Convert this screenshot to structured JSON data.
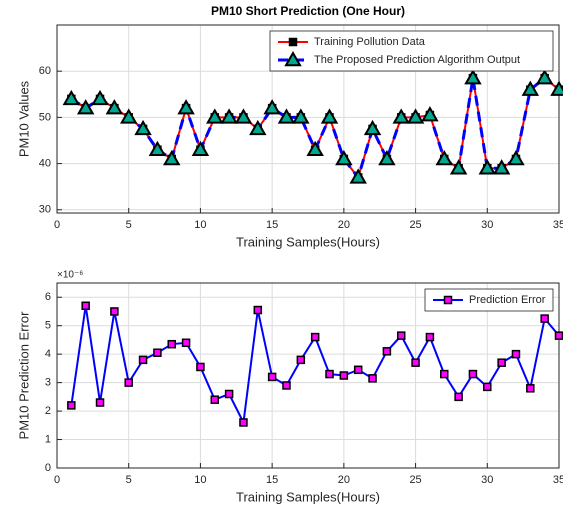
{
  "chart_data": [
    {
      "type": "line",
      "title": "PM10 Short Prediction (One Hour)",
      "xlabel": "Training Samples(Hours)",
      "ylabel": "PM10 Values",
      "x": [
        1,
        2,
        3,
        4,
        5,
        6,
        7,
        8,
        9,
        10,
        11,
        12,
        13,
        14,
        15,
        16,
        17,
        18,
        19,
        20,
        21,
        22,
        23,
        24,
        25,
        26,
        27,
        28,
        29,
        30,
        31,
        32,
        33,
        34,
        35
      ],
      "xlim": [
        0,
        35
      ],
      "xticks": [
        0,
        5,
        10,
        15,
        20,
        25,
        30,
        35
      ],
      "ylim": [
        29.3,
        70
      ],
      "yticks": [
        30,
        40,
        50,
        60
      ],
      "grid": true,
      "legend": "upper right",
      "series": [
        {
          "name": "Training Pollution Data",
          "color": "#ff0000",
          "linestyle": "solid",
          "marker": "square",
          "marker_color": "#000000",
          "values": [
            54,
            52,
            54,
            52,
            50,
            47.5,
            43,
            41,
            52,
            43,
            50,
            50,
            50,
            47.5,
            52,
            50,
            50,
            43,
            50,
            41,
            37,
            47.5,
            41,
            50,
            50,
            50.5,
            41,
            39,
            58.5,
            39,
            39,
            41,
            56,
            58.5,
            56
          ]
        },
        {
          "name": "The Proposed Prediction Algorithm Output",
          "color": "#0000ff",
          "linestyle": "dashed",
          "marker": "triangle",
          "marker_color": "#00a890",
          "values": [
            54,
            52,
            54,
            52,
            50,
            47.5,
            43,
            41,
            52,
            43,
            50,
            50,
            50,
            47.5,
            52,
            50,
            50,
            43,
            50,
            41,
            37,
            47.5,
            41,
            50,
            50,
            50.5,
            41,
            39,
            58.5,
            39,
            39,
            41,
            56,
            58.5,
            56
          ]
        }
      ]
    },
    {
      "type": "line",
      "xlabel": "Training Samples(Hours)",
      "ylabel": "PM10 Prediction Error",
      "y_multiplier": "×10⁻⁶",
      "x": [
        1,
        2,
        3,
        4,
        5,
        6,
        7,
        8,
        9,
        10,
        11,
        12,
        13,
        14,
        15,
        16,
        17,
        18,
        19,
        20,
        21,
        22,
        23,
        24,
        25,
        26,
        27,
        28,
        29,
        30,
        31,
        32,
        33,
        34,
        35
      ],
      "xlim": [
        0,
        35
      ],
      "xticks": [
        0,
        5,
        10,
        15,
        20,
        25,
        30,
        35
      ],
      "ylim": [
        0,
        6.5
      ],
      "yticks": [
        0,
        1,
        2,
        3,
        4,
        5,
        6
      ],
      "grid": true,
      "legend": "upper right",
      "series": [
        {
          "name": "Prediction Error",
          "color": "#0000ff",
          "linestyle": "solid",
          "marker": "square",
          "marker_color": "#ff00ff",
          "values": [
            2.2,
            5.7,
            2.3,
            5.5,
            3.0,
            3.8,
            4.05,
            4.35,
            4.4,
            3.55,
            2.4,
            2.6,
            1.6,
            5.55,
            3.2,
            2.9,
            3.8,
            4.6,
            3.3,
            3.25,
            3.45,
            3.15,
            4.1,
            4.65,
            3.7,
            4.6,
            3.3,
            2.5,
            3.3,
            2.85,
            3.7,
            4.0,
            2.8,
            5.25,
            4.65
          ]
        }
      ]
    }
  ]
}
